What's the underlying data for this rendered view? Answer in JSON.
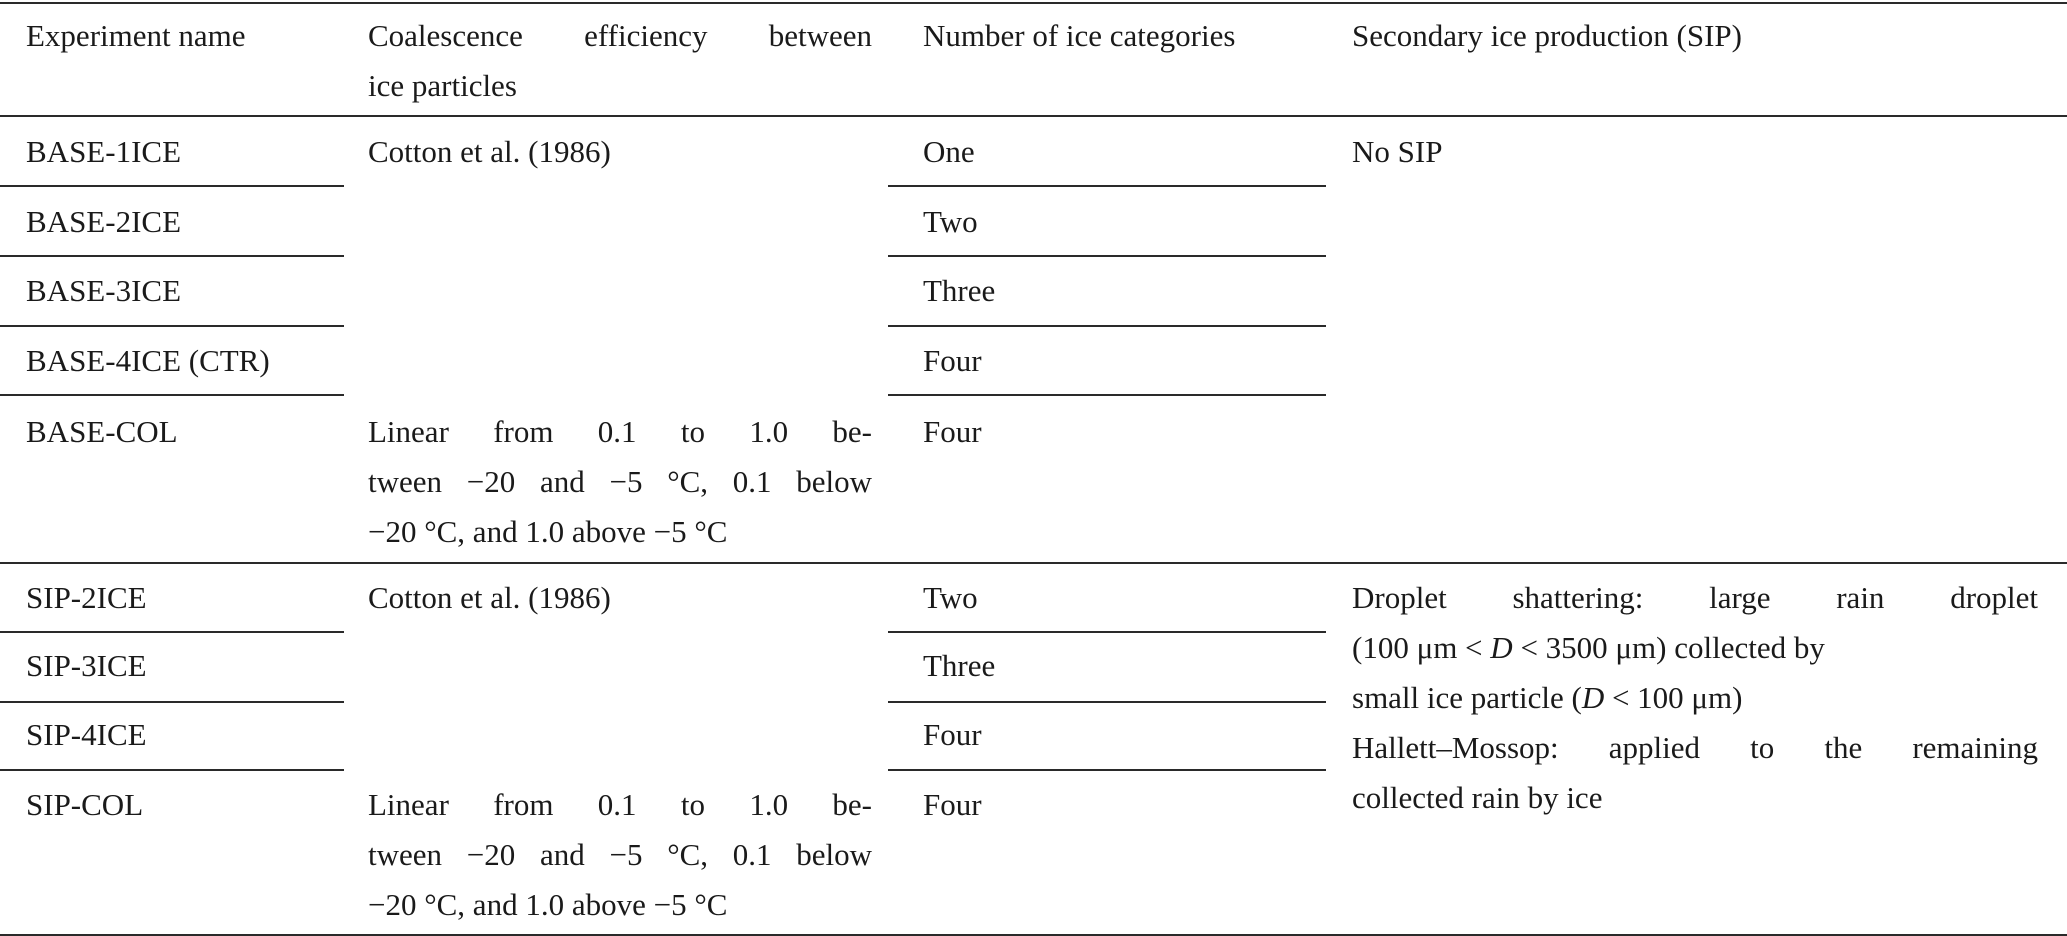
{
  "table": {
    "headers": [
      [
        "Experiment name"
      ],
      [
        "Coalescence efficiency between",
        "ice particles"
      ],
      [
        "Number of ice categories"
      ],
      [
        "Secondary ice production (SIP)"
      ]
    ],
    "experiments": [
      "BASE-1ICE",
      "BASE-2ICE",
      "BASE-3ICE",
      "BASE-4ICE (CTR)",
      "BASE-COL",
      "SIP-2ICE",
      "SIP-3ICE",
      "SIP-4ICE",
      "SIP-COL"
    ],
    "ice_categories": [
      "One",
      "Two",
      "Three",
      "Four",
      "Four",
      "Two",
      "Three",
      "Four",
      "Four"
    ],
    "coalescence": {
      "cotton": "Cotton et al. (1986)",
      "linear": [
        "Linear from 0.1 to 1.0 be-",
        "tween −20 and −5 °C, 0.1 below",
        "−20 °C, and 1.0 above −5 °C"
      ]
    },
    "sip": {
      "none": "No SIP",
      "sip_lines": [
        "Droplet shattering: large rain droplet",
        "(100 μm < D < 3500 μm) collected by",
        "small ice particle (D < 100 μm)",
        "Hallett–Mossop: applied to the remaining",
        "collected rain by ice"
      ]
    }
  }
}
